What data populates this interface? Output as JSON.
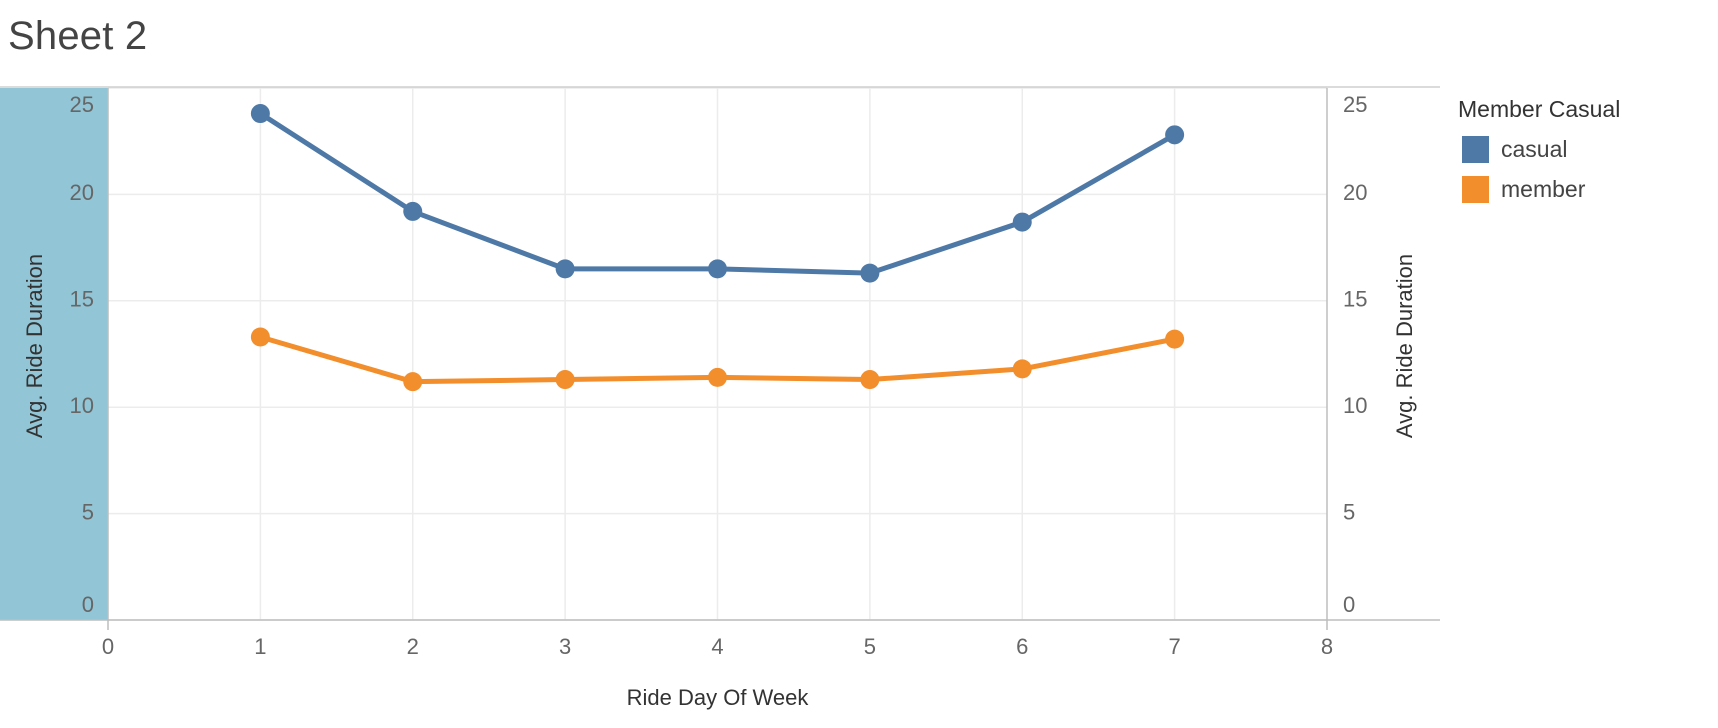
{
  "sheet": {
    "title": "Sheet 2"
  },
  "legend": {
    "title": "Member Casual",
    "items": [
      {
        "label": "casual",
        "color": "#4e79a7"
      },
      {
        "label": "member",
        "color": "#f28e2b"
      }
    ]
  },
  "chart_data": {
    "type": "line",
    "xlabel": "Ride Day Of Week",
    "ylabel": "Avg. Ride Duration",
    "ylabel_right": "Avg. Ride Duration",
    "xlim": [
      0,
      8
    ],
    "ylim": [
      0,
      25
    ],
    "x_ticks": [
      0,
      1,
      2,
      3,
      4,
      5,
      6,
      7,
      8
    ],
    "y_ticks": [
      0,
      5,
      10,
      15,
      20,
      25
    ],
    "grid": true,
    "legend_position": "right",
    "x": [
      1,
      2,
      3,
      4,
      5,
      6,
      7
    ],
    "series": [
      {
        "name": "casual",
        "color": "#4e79a7",
        "values": [
          23.8,
          19.2,
          16.5,
          16.5,
          16.3,
          18.7,
          22.8
        ]
      },
      {
        "name": "member",
        "color": "#f28e2b",
        "values": [
          13.3,
          11.2,
          11.3,
          11.4,
          11.3,
          11.8,
          13.2
        ]
      }
    ],
    "highlight_band_color": "#92c5d6"
  }
}
